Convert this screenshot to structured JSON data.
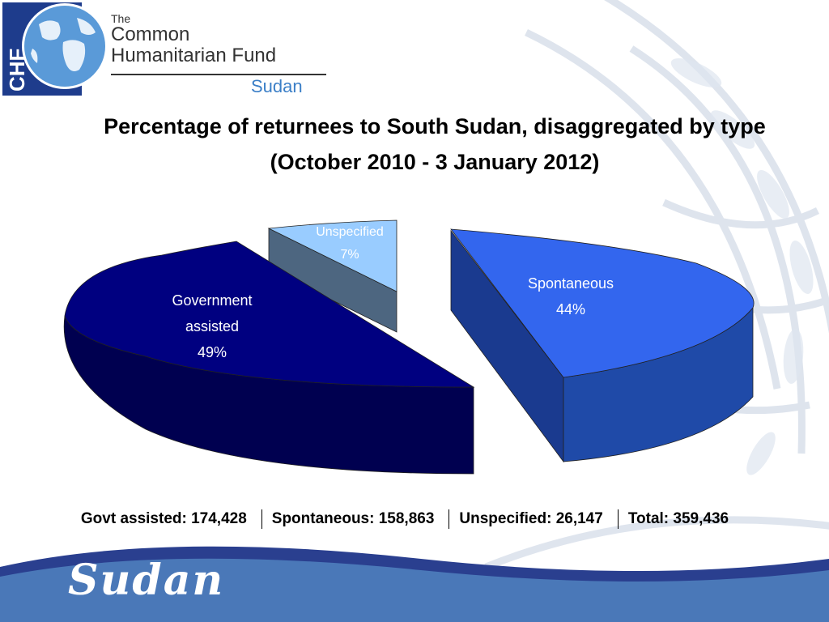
{
  "logo": {
    "badge": "CHF",
    "the": "The",
    "line1": "Common",
    "line2": "Humanitarian Fund",
    "line3": "Sudan"
  },
  "title": "Percentage of returnees to South Sudan, disaggregated by type",
  "subtitle": "(October 2010 - 3 January 2012)",
  "chart_data": {
    "type": "pie",
    "title": "Percentage of returnees to South Sudan, disaggregated by type",
    "subtitle": "(October 2010 - 3 January 2012)",
    "slices": [
      {
        "name": "Spontaneous",
        "label": "Spontaneous",
        "percent": "44%",
        "value": 44,
        "color": "#3366ee"
      },
      {
        "name": "Unspecified",
        "label": "Unspecified",
        "percent": "7%",
        "value": 7,
        "color": "#99ccff"
      },
      {
        "name": "Government assisted",
        "label_line1": "Government",
        "label_line2": "assisted",
        "percent": "49%",
        "value": 49,
        "color": "#000080"
      }
    ],
    "style": "3d-exploded"
  },
  "totals": {
    "govt": "Govt assisted: 174,428",
    "spontaneous": "Spontaneous: 158,863",
    "unspecified": "Unspecified: 26,147",
    "total": "Total: 359,436"
  },
  "footer": {
    "label": "Sudan"
  },
  "colors": {
    "spontaneous_top": "#3366ee",
    "spontaneous_side": "#1a3a8f",
    "unspecified_top": "#99ccff",
    "unspecified_side": "#4d6680",
    "govt_top": "#000080",
    "govt_side": "#000050",
    "footer_band": "#2a3f8f",
    "footer_fill": "#4a78b8"
  }
}
